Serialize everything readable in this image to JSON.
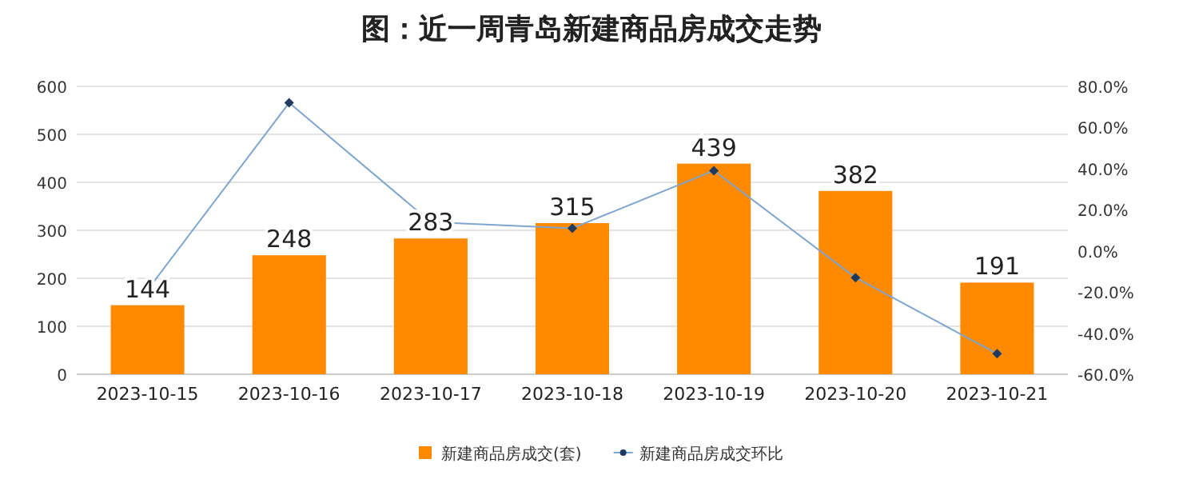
{
  "chart_data": {
    "type": "bar",
    "title": "图：近一周青岛新建商品房成交走势",
    "categories": [
      "2023-10-15",
      "2023-10-16",
      "2023-10-17",
      "2023-10-18",
      "2023-10-19",
      "2023-10-20",
      "2023-10-21"
    ],
    "series": [
      {
        "name": "新建商品房成交(套)",
        "color": "#ff8a00",
        "values": [
          144,
          248,
          283,
          315,
          439,
          382,
          191
        ],
        "value_labels": [
          "144",
          "248",
          "283",
          "315",
          "439",
          "382",
          "191"
        ]
      },
      {
        "name": "新建商品房成交环比",
        "type": "line",
        "axis": "y2",
        "color": "#7ea6d0",
        "marker": "diamond",
        "values": [
          -19,
          72,
          14,
          11,
          39,
          -13,
          -50
        ]
      }
    ],
    "ylim": [
      0,
      600
    ],
    "yticks": [
      0,
      100,
      200,
      300,
      400,
      500,
      600
    ],
    "y2lim": [
      -60,
      80
    ],
    "y2ticks": [
      {
        "value": -60,
        "label": "-60.0%"
      },
      {
        "value": -40,
        "label": "-40.0%"
      },
      {
        "value": -20,
        "label": "-20.0%"
      },
      {
        "value": 0,
        "label": "0.0%"
      },
      {
        "value": 20,
        "label": "20.0%"
      },
      {
        "value": 40,
        "label": "40.0%"
      },
      {
        "value": 60,
        "label": "60.0%"
      },
      {
        "value": 80,
        "label": "80.0%"
      }
    ],
    "grid": "y",
    "legend": "bottom"
  }
}
